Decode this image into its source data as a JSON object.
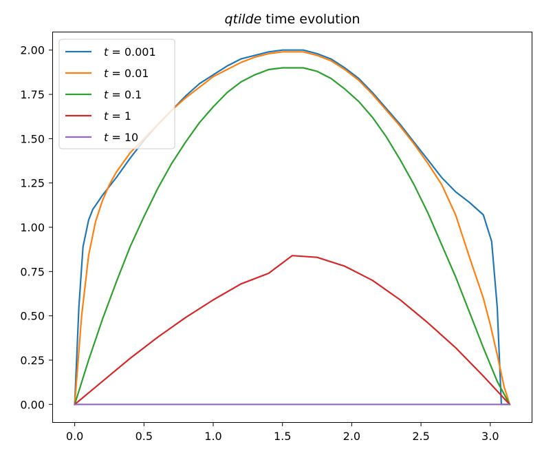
{
  "chart_data": {
    "type": "line",
    "title": {
      "italic": "qtilde",
      "rest": " time evolution"
    },
    "xlabel": "",
    "ylabel": "",
    "xlim": [
      -0.157,
      3.299
    ],
    "ylim": [
      -0.1,
      2.1
    ],
    "xticks": [
      {
        "value": 0.0,
        "label": "0.0"
      },
      {
        "value": 0.5,
        "label": "0.5"
      },
      {
        "value": 1.0,
        "label": "1.0"
      },
      {
        "value": 1.5,
        "label": "1.5"
      },
      {
        "value": 2.0,
        "label": "2.0"
      },
      {
        "value": 2.5,
        "label": "2.5"
      },
      {
        "value": 3.0,
        "label": "3.0"
      }
    ],
    "yticks": [
      {
        "value": 0.0,
        "label": "0.00"
      },
      {
        "value": 0.25,
        "label": "0.25"
      },
      {
        "value": 0.5,
        "label": "0.50"
      },
      {
        "value": 0.75,
        "label": "0.75"
      },
      {
        "value": 1.0,
        "label": "1.00"
      },
      {
        "value": 1.25,
        "label": "1.25"
      },
      {
        "value": 1.5,
        "label": "1.50"
      },
      {
        "value": 1.75,
        "label": "1.75"
      },
      {
        "value": 2.0,
        "label": "2.00"
      }
    ],
    "grid": false,
    "legend_position": "top-left",
    "series": [
      {
        "name": "t = 0.001",
        "var": "t",
        "val": "0.001",
        "color": "#1f77b4",
        "x": [
          0.0,
          0.03,
          0.06,
          0.1,
          0.13,
          0.2,
          0.3,
          0.4,
          0.5,
          0.6,
          0.7,
          0.8,
          0.9,
          1.0,
          1.1,
          1.2,
          1.3,
          1.4,
          1.5,
          1.57,
          1.65,
          1.75,
          1.85,
          1.95,
          2.05,
          2.15,
          2.25,
          2.35,
          2.45,
          2.55,
          2.65,
          2.75,
          2.85,
          2.95,
          3.01,
          3.05,
          3.08,
          3.11,
          3.14
        ],
        "y": [
          0.0,
          0.55,
          0.89,
          1.04,
          1.1,
          1.18,
          1.28,
          1.39,
          1.49,
          1.58,
          1.66,
          1.74,
          1.81,
          1.86,
          1.91,
          1.95,
          1.97,
          1.99,
          2.0,
          2.0,
          2.0,
          1.98,
          1.95,
          1.9,
          1.84,
          1.76,
          1.67,
          1.58,
          1.48,
          1.38,
          1.28,
          1.2,
          1.14,
          1.07,
          0.92,
          0.55,
          0.0,
          0.0,
          0.0
        ]
      },
      {
        "name": "t = 0.01",
        "var": "t",
        "val": "0.01",
        "color": "#ff7f0e",
        "x": [
          0.0,
          0.05,
          0.1,
          0.15,
          0.2,
          0.25,
          0.3,
          0.4,
          0.5,
          0.6,
          0.7,
          0.8,
          0.9,
          1.0,
          1.1,
          1.2,
          1.3,
          1.4,
          1.5,
          1.57,
          1.65,
          1.75,
          1.85,
          1.95,
          2.05,
          2.15,
          2.25,
          2.35,
          2.45,
          2.55,
          2.65,
          2.75,
          2.85,
          2.95,
          3.0,
          3.05,
          3.1,
          3.14
        ],
        "y": [
          0.0,
          0.5,
          0.84,
          1.03,
          1.15,
          1.24,
          1.31,
          1.42,
          1.5,
          1.58,
          1.66,
          1.73,
          1.79,
          1.85,
          1.89,
          1.93,
          1.96,
          1.98,
          1.99,
          1.99,
          1.99,
          1.97,
          1.94,
          1.89,
          1.83,
          1.75,
          1.66,
          1.57,
          1.47,
          1.36,
          1.24,
          1.07,
          0.83,
          0.6,
          0.45,
          0.28,
          0.1,
          0.0
        ]
      },
      {
        "name": "t = 0.1",
        "var": "t",
        "val": "0.1",
        "color": "#2ca02c",
        "x": [
          0.0,
          0.1,
          0.2,
          0.3,
          0.4,
          0.5,
          0.6,
          0.7,
          0.8,
          0.9,
          1.0,
          1.1,
          1.2,
          1.3,
          1.4,
          1.5,
          1.57,
          1.65,
          1.75,
          1.85,
          1.95,
          2.05,
          2.15,
          2.25,
          2.35,
          2.45,
          2.55,
          2.65,
          2.75,
          2.85,
          2.95,
          3.05,
          3.14
        ],
        "y": [
          0.0,
          0.25,
          0.48,
          0.69,
          0.89,
          1.06,
          1.22,
          1.36,
          1.48,
          1.59,
          1.68,
          1.76,
          1.82,
          1.86,
          1.89,
          1.9,
          1.9,
          1.9,
          1.88,
          1.84,
          1.78,
          1.71,
          1.62,
          1.51,
          1.38,
          1.24,
          1.08,
          0.9,
          0.72,
          0.52,
          0.32,
          0.13,
          0.0
        ]
      },
      {
        "name": "t = 1",
        "var": "t",
        "val": "1",
        "color": "#d62728",
        "x": [
          0.0,
          0.2,
          0.4,
          0.6,
          0.8,
          1.0,
          1.2,
          1.4,
          1.57,
          1.75,
          1.95,
          2.15,
          2.35,
          2.55,
          2.75,
          2.95,
          3.14
        ],
        "y": [
          0.0,
          0.13,
          0.26,
          0.38,
          0.49,
          0.59,
          0.68,
          0.74,
          0.84,
          0.83,
          0.78,
          0.7,
          0.59,
          0.46,
          0.32,
          0.16,
          0.0
        ]
      },
      {
        "name": "t = 10",
        "var": "t",
        "val": "10",
        "color": "#9467bd",
        "x": [
          0.0,
          3.14
        ],
        "y": [
          0.0,
          0.0
        ]
      }
    ]
  }
}
